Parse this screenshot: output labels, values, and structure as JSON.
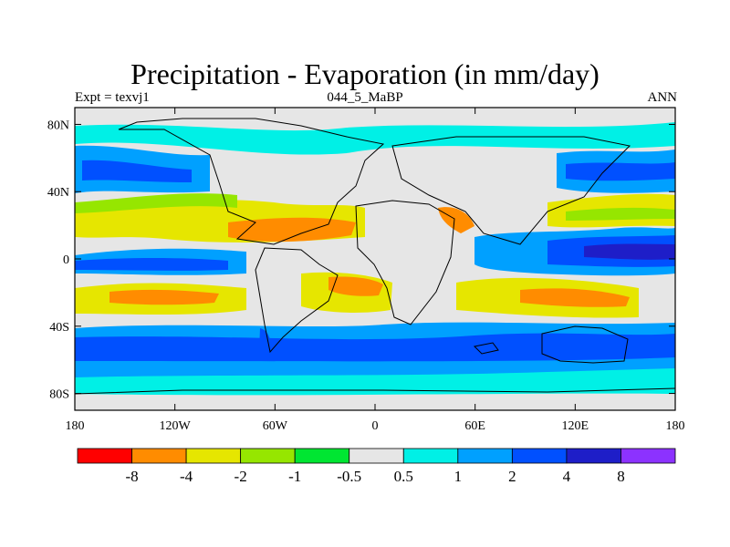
{
  "title": "Precipitation - Evaporation (in mm/day)",
  "subtitle_left": "Expt = texvj1",
  "subtitle_center": "044_5_MaBP",
  "subtitle_right": "ANN",
  "axes": {
    "lat_ticks": [
      {
        "value": 80,
        "label": "80N"
      },
      {
        "value": 40,
        "label": "40N"
      },
      {
        "value": 0,
        "label": "0"
      },
      {
        "value": -40,
        "label": "40S"
      },
      {
        "value": -80,
        "label": "80S"
      }
    ],
    "lon_ticks": [
      {
        "value": -180,
        "label": "180"
      },
      {
        "value": -120,
        "label": "120W"
      },
      {
        "value": -60,
        "label": "60W"
      },
      {
        "value": 0,
        "label": "0"
      },
      {
        "value": 60,
        "label": "60E"
      },
      {
        "value": 120,
        "label": "120E"
      },
      {
        "value": 180,
        "label": "180"
      }
    ]
  },
  "colorbar": {
    "levels": [
      "-8",
      "-4",
      "-2",
      "-1",
      "-0.5",
      "0.5",
      "1",
      "2",
      "4",
      "8"
    ],
    "colors": [
      "#ff0000",
      "#ff8c00",
      "#e6e600",
      "#96e600",
      "#00e632",
      "#e6e6e6",
      "#00f0e6",
      "#00a0ff",
      "#0050ff",
      "#1e1ec8",
      "#8c32ff"
    ]
  }
}
